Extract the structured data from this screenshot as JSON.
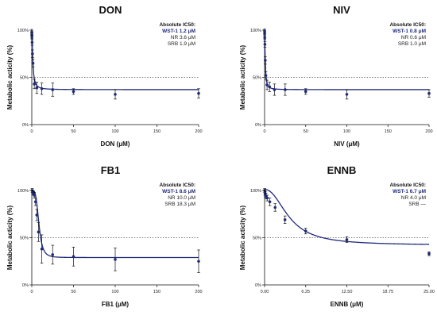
{
  "colors": {
    "series": "#1f2a7a",
    "axis": "#111111",
    "threshold": "#555555"
  },
  "chart_data": [
    {
      "type": "scatter",
      "title": "DON",
      "xlabel": "DON (μM)",
      "ylabel": "Metabolic acticity (%)",
      "xlim": [
        0,
        200
      ],
      "ylim": [
        0,
        100
      ],
      "xticks": [
        0,
        50,
        100,
        150,
        200
      ],
      "yticks": [
        {
          "value": 0,
          "label": "0%"
        },
        {
          "value": 50,
          "label": "50%"
        },
        {
          "value": 100,
          "label": "100%"
        }
      ],
      "threshold": 50,
      "annotation": {
        "heading": "Absolute IC50:",
        "wst1": "WST-1 1.2 μM",
        "nr": "NR 3.6 μM",
        "srb": "SRB 1.9 μM"
      },
      "points": [
        {
          "x": 0.05,
          "y": 98,
          "err": 2
        },
        {
          "x": 0.1,
          "y": 95,
          "err": 2
        },
        {
          "x": 0.2,
          "y": 93,
          "err": 2
        },
        {
          "x": 0.4,
          "y": 87,
          "err": 3
        },
        {
          "x": 0.8,
          "y": 75,
          "err": 4
        },
        {
          "x": 1.5,
          "y": 65,
          "err": 4
        },
        {
          "x": 3,
          "y": 43,
          "err": 5
        },
        {
          "x": 6,
          "y": 39,
          "err": 6
        },
        {
          "x": 12,
          "y": 38,
          "err": 6
        },
        {
          "x": 25,
          "y": 37,
          "err": 7
        },
        {
          "x": 50,
          "y": 35,
          "err": 3
        },
        {
          "x": 100,
          "y": 32,
          "err": 5
        },
        {
          "x": 200,
          "y": 33,
          "err": 5
        }
      ],
      "fit": {
        "bottom": 37,
        "top": 100,
        "ic50": 1.2,
        "hill": 1.6
      }
    },
    {
      "type": "scatter",
      "title": "NIV",
      "xlabel": "NIV (μM)",
      "ylabel": "Metabolic acticity (%)",
      "xlim": [
        0,
        200
      ],
      "ylim": [
        0,
        100
      ],
      "xticks": [
        0,
        50,
        100,
        150,
        200
      ],
      "yticks": [
        {
          "value": 0,
          "label": "0%"
        },
        {
          "value": 50,
          "label": "50%"
        },
        {
          "value": 100,
          "label": "100%"
        }
      ],
      "threshold": 50,
      "annotation": {
        "heading": "Absolute IC50:",
        "wst1": "WST-1 0.8 μM",
        "nr": "NR 0.6 μM",
        "srb": "SRB 1.0 μM"
      },
      "points": [
        {
          "x": 0.05,
          "y": 99,
          "err": 2
        },
        {
          "x": 0.1,
          "y": 96,
          "err": 2
        },
        {
          "x": 0.2,
          "y": 92,
          "err": 2
        },
        {
          "x": 0.4,
          "y": 85,
          "err": 3
        },
        {
          "x": 0.8,
          "y": 68,
          "err": 4
        },
        {
          "x": 1.5,
          "y": 52,
          "err": 4
        },
        {
          "x": 3,
          "y": 42,
          "err": 5
        },
        {
          "x": 6,
          "y": 40,
          "err": 5
        },
        {
          "x": 12,
          "y": 37,
          "err": 6
        },
        {
          "x": 25,
          "y": 37,
          "err": 6
        },
        {
          "x": 50,
          "y": 35,
          "err": 3
        },
        {
          "x": 100,
          "y": 32,
          "err": 5
        },
        {
          "x": 200,
          "y": 33,
          "err": 4
        }
      ],
      "fit": {
        "bottom": 37,
        "top": 100,
        "ic50": 0.8,
        "hill": 1.6
      }
    },
    {
      "type": "scatter",
      "title": "FB1",
      "xlabel": "FB1 (μM)",
      "ylabel": "Metabolic acticity (%)",
      "xlim": [
        0,
        200
      ],
      "ylim": [
        0,
        100
      ],
      "xticks": [
        0,
        50,
        100,
        150,
        200
      ],
      "yticks": [
        {
          "value": 0,
          "label": "0%"
        },
        {
          "value": 50,
          "label": "50%"
        },
        {
          "value": 100,
          "label": "100%"
        }
      ],
      "threshold": 50,
      "annotation": {
        "heading": "Absolute IC50:",
        "wst1": "WST-1 8.6 μM",
        "nr": "NR 10.0 μM",
        "srb": "SRB 18.3 μM"
      },
      "points": [
        {
          "x": 0.5,
          "y": 100,
          "err": 2
        },
        {
          "x": 1,
          "y": 98,
          "err": 2
        },
        {
          "x": 2,
          "y": 97,
          "err": 2
        },
        {
          "x": 3,
          "y": 95,
          "err": 3
        },
        {
          "x": 4.5,
          "y": 88,
          "err": 4
        },
        {
          "x": 6,
          "y": 74,
          "err": 6
        },
        {
          "x": 8,
          "y": 56,
          "err": 10
        },
        {
          "x": 12,
          "y": 38,
          "err": 15
        },
        {
          "x": 25,
          "y": 32,
          "err": 10
        },
        {
          "x": 50,
          "y": 30,
          "err": 10
        },
        {
          "x": 100,
          "y": 27,
          "err": 12
        },
        {
          "x": 200,
          "y": 25,
          "err": 12
        }
      ],
      "fit": {
        "bottom": 29,
        "top": 100,
        "ic50": 8.6,
        "hill": 4
      }
    },
    {
      "type": "scatter",
      "title": "ENNB",
      "xlabel": "ENNB (μM)",
      "ylabel": "Metabolic acticity (%)",
      "xlim": [
        0,
        25
      ],
      "ylim": [
        0,
        100
      ],
      "xticks": [
        {
          "value": 0,
          "label": "0.00"
        },
        {
          "value": 6.25,
          "label": "6.25"
        },
        {
          "value": 12.5,
          "label": "12.50"
        },
        {
          "value": 18.75,
          "label": "18.75"
        },
        {
          "value": 25,
          "label": "25.00"
        }
      ],
      "yticks": [
        {
          "value": 0,
          "label": "0%"
        },
        {
          "value": 50,
          "label": "50%"
        },
        {
          "value": 100,
          "label": "100%"
        }
      ],
      "threshold": 50,
      "annotation": {
        "heading": "Absolute IC50:",
        "wst1": "WST-1 6.7 μM",
        "nr": "NR 4.0 μM",
        "srb": "SRB  —"
      },
      "points": [
        {
          "x": 0.02,
          "y": 100,
          "err": 2
        },
        {
          "x": 0.05,
          "y": 98,
          "err": 3
        },
        {
          "x": 0.1,
          "y": 96,
          "err": 3
        },
        {
          "x": 0.2,
          "y": 94,
          "err": 3
        },
        {
          "x": 0.4,
          "y": 92,
          "err": 3
        },
        {
          "x": 0.8,
          "y": 88,
          "err": 4
        },
        {
          "x": 1.6,
          "y": 82,
          "err": 4
        },
        {
          "x": 3.1,
          "y": 69,
          "err": 4
        },
        {
          "x": 6.25,
          "y": 57,
          "err": 3
        },
        {
          "x": 12.5,
          "y": 48,
          "err": 3
        },
        {
          "x": 25,
          "y": 33,
          "err": 2
        }
      ],
      "fit": {
        "bottom": 42,
        "top": 101,
        "ic50": 3.8,
        "hill": 2.2
      }
    }
  ]
}
